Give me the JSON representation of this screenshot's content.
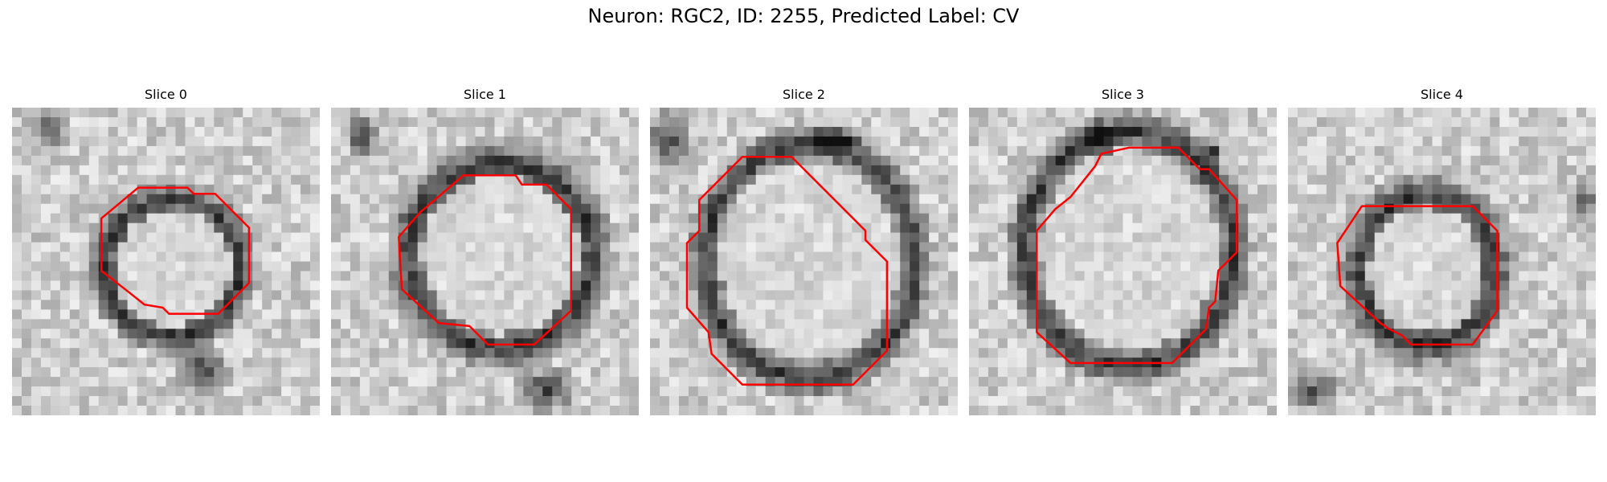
{
  "figure": {
    "title": "Neuron: RGC2, ID: 2255, Predicted Label: CV",
    "contour_color": "#ff0000",
    "colormap": "gray"
  },
  "panels": [
    {
      "title": "Slice 0"
    },
    {
      "title": "Slice 1"
    },
    {
      "title": "Slice 2"
    },
    {
      "title": "Slice 3"
    },
    {
      "title": "Slice 4"
    }
  ]
}
